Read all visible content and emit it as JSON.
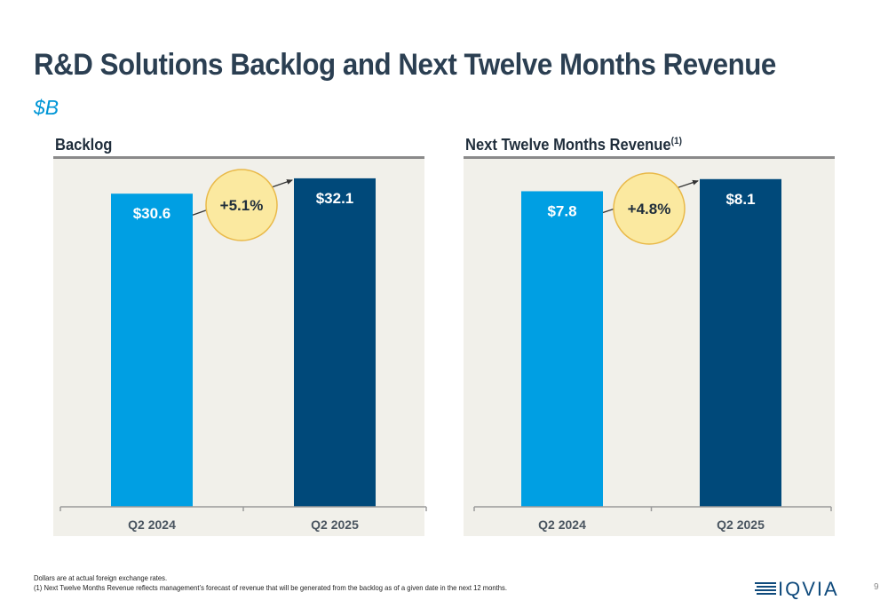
{
  "title": "R&D Solutions Backlog and Next Twelve Months Revenue",
  "subtitle": "$B",
  "colors": {
    "bar_2024": "#009fe3",
    "bar_2025": "#00497a",
    "bubble_fill": "#fbe9a0",
    "bubble_stroke": "#e9b949",
    "panel_bg": "#f1f0ea"
  },
  "chart_data": [
    {
      "type": "bar",
      "title": "Backlog",
      "title_superscript": "",
      "categories": [
        "Q2 2024",
        "Q2 2025"
      ],
      "values": [
        30.6,
        32.1
      ],
      "data_labels": [
        "$30.6",
        "$32.1"
      ],
      "growth_label": "+5.1%",
      "ylim": [
        0,
        34
      ]
    },
    {
      "type": "bar",
      "title": "Next Twelve Months Revenue",
      "title_superscript": "(1)",
      "categories": [
        "Q2 2024",
        "Q2 2025"
      ],
      "values": [
        7.8,
        8.1
      ],
      "data_labels": [
        "$7.8",
        "$8.1"
      ],
      "growth_label": "+4.8%",
      "ylim": [
        0,
        8.6
      ]
    }
  ],
  "footnotes": {
    "line1": "Dollars are at actual foreign exchange rates.",
    "line2": "(1) Next Twelve Months Revenue reflects management’s forecast of revenue that will be generated from the backlog as of a given date in the next 12 months."
  },
  "logo": {
    "text": "IQVIA",
    "icon": "iqvia-lines-icon"
  },
  "page_number": "9"
}
